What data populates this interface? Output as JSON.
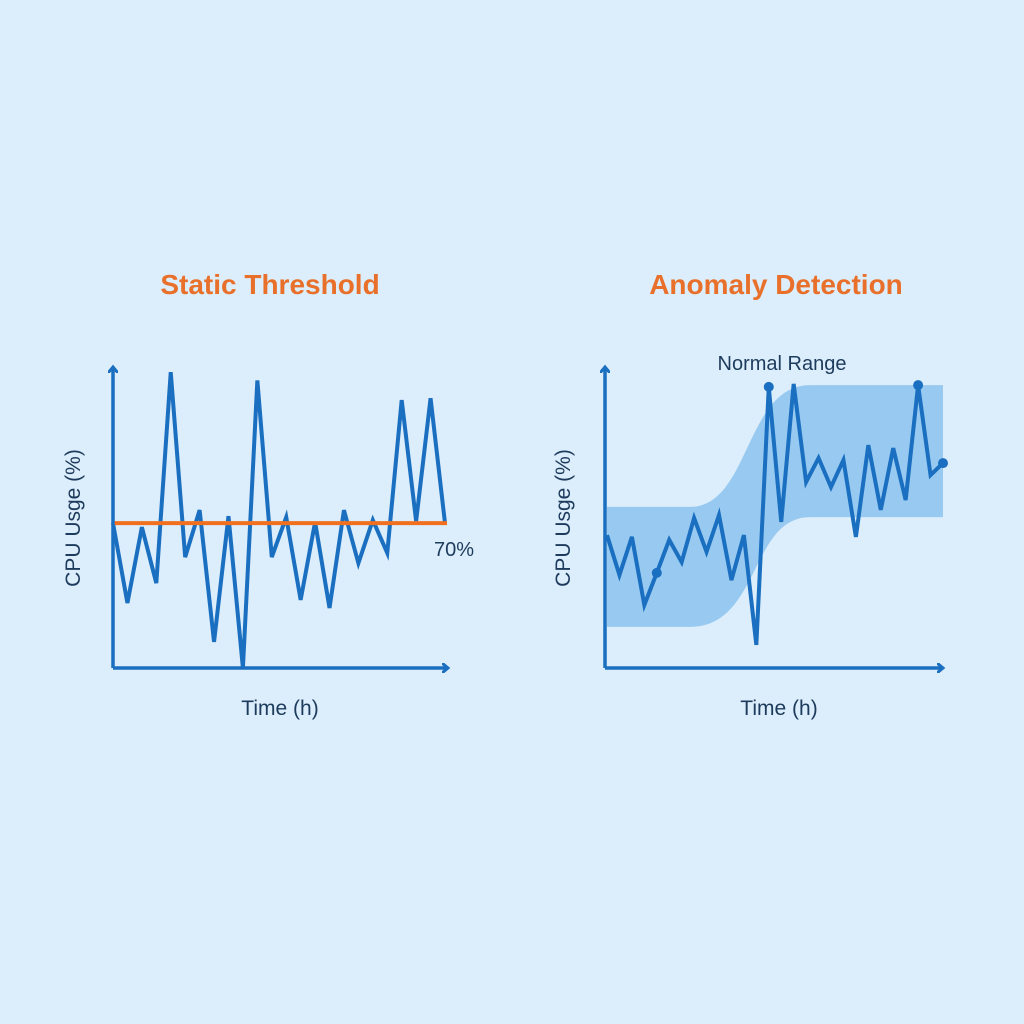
{
  "colors": {
    "background": "#dcedfb",
    "title": "#e8702a",
    "line": "#1a6fc0",
    "threshold": "#f07020",
    "band": "#8cc3ef",
    "text": "#1d3b5c"
  },
  "chart_data": [
    {
      "type": "line",
      "title": "Static Threshold",
      "xlabel": "Time (h)",
      "ylabel": "CPU Usge (%)",
      "ylim": [
        0,
        145
      ],
      "grid": false,
      "threshold": {
        "value": 70,
        "label": "70%"
      },
      "series": [
        {
          "values": [
            70,
            31.4,
            68.1,
            41,
            143,
            53.6,
            76.3,
            12.6,
            73.4,
            0,
            139,
            53.6,
            72.9,
            32.9,
            70.5,
            29,
            76.3,
            50.7,
            71.5,
            55.6,
            129.5,
            71,
            130.4,
            70
          ]
        }
      ]
    },
    {
      "type": "line",
      "title": "Anomaly Detection",
      "xlabel": "Time (h)",
      "ylabel": "CPU Usge (%)",
      "ylim": [
        0,
        100
      ],
      "grid": false,
      "band": {
        "label": "Normal Range",
        "start": {
          "lower": 13.7,
          "upper": 53.7
        },
        "end": {
          "lower": 50.3,
          "upper": 94.3
        }
      },
      "series": [
        {
          "values": [
            44.3,
            31,
            43.7,
            21,
            31.7,
            42.7,
            35.3,
            50,
            38.7,
            51,
            29.3,
            44.3,
            7.7,
            93.7,
            48.7,
            94.7,
            62,
            70,
            60.3,
            69.3,
            43.7,
            74.3,
            52.7,
            73.3,
            56,
            94.3,
            64.3,
            68.3
          ]
        }
      ],
      "highlighted_indices": [
        4,
        13,
        25,
        27
      ]
    }
  ]
}
